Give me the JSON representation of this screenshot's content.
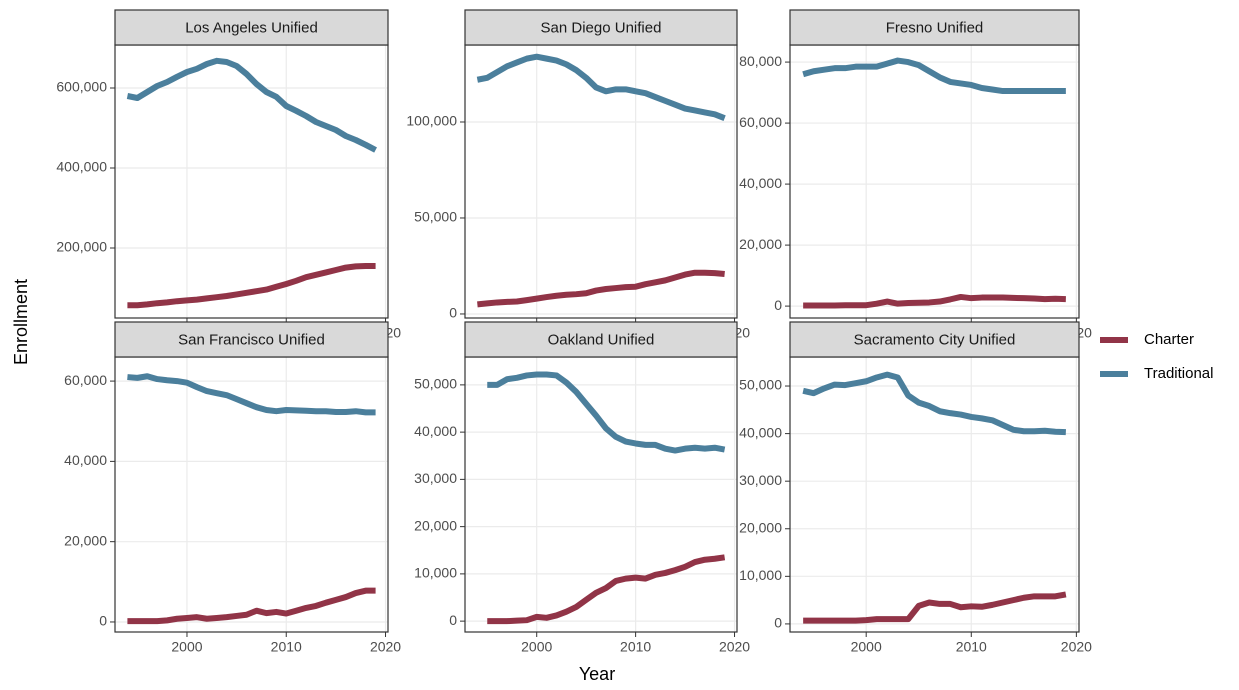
{
  "xlabel": "Year",
  "ylabel": "Enrollment",
  "chart_data": [
    {
      "type": "line",
      "title": "Los Angeles Unified",
      "grid": true,
      "x": [
        1994,
        1995,
        1996,
        1997,
        1998,
        1999,
        2000,
        2001,
        2002,
        2003,
        2004,
        2005,
        2006,
        2007,
        2008,
        2009,
        2010,
        2011,
        2012,
        2013,
        2014,
        2015,
        2016,
        2017,
        2018,
        2019
      ],
      "xlim": [
        1992.75,
        2020.25
      ],
      "xticks": [
        2000,
        2010,
        2020
      ],
      "ylim": [
        25000,
        707500
      ],
      "yticks": [
        {
          "value": 200000,
          "label": "200,000"
        },
        {
          "value": 400000,
          "label": "400,000"
        },
        {
          "value": 600000,
          "label": "600,000"
        }
      ],
      "series": [
        {
          "name": "Charter",
          "color": "#913447",
          "values": [
            57000,
            57000,
            59000,
            62000,
            64000,
            67000,
            69000,
            71000,
            74000,
            77000,
            80000,
            84000,
            88000,
            92000,
            96000,
            103000,
            110000,
            118000,
            127000,
            133000,
            139000,
            145000,
            151000,
            154000,
            155000,
            155000
          ]
        },
        {
          "name": "Traditional",
          "color": "#4b7f9c",
          "values": [
            580000,
            575000,
            590000,
            605000,
            615000,
            628000,
            640000,
            648000,
            660000,
            668000,
            665000,
            655000,
            635000,
            610000,
            590000,
            578000,
            555000,
            543000,
            530000,
            515000,
            505000,
            495000,
            480000,
            470000,
            458000,
            445000
          ]
        }
      ]
    },
    {
      "type": "line",
      "title": "San Diego Unified",
      "grid": true,
      "x": [
        1994,
        1995,
        1996,
        1997,
        1998,
        1999,
        2000,
        2001,
        2002,
        2003,
        2004,
        2005,
        2006,
        2007,
        2008,
        2009,
        2010,
        2011,
        2012,
        2013,
        2014,
        2015,
        2016,
        2017,
        2018,
        2019
      ],
      "xlim": [
        1992.75,
        2020.25
      ],
      "xticks": [
        2000,
        2010,
        2020
      ],
      "ylim": [
        -2100,
        140100
      ],
      "yticks": [
        0,
        {
          "value": 50000,
          "label": "50,000"
        },
        {
          "value": 100000,
          "label": "100,000"
        }
      ],
      "series": [
        {
          "name": "Charter",
          "color": "#913447",
          "values": [
            5000,
            5500,
            6000,
            6300,
            6500,
            7200,
            8000,
            8800,
            9500,
            10000,
            10300,
            10800,
            12200,
            13000,
            13500,
            14000,
            14200,
            15500,
            16500,
            17500,
            19000,
            20500,
            21500,
            21500,
            21300,
            20800
          ]
        },
        {
          "name": "Traditional",
          "color": "#4b7f9c",
          "values": [
            122000,
            123000,
            126000,
            129000,
            131000,
            133000,
            134000,
            133000,
            132000,
            130000,
            127000,
            123000,
            118000,
            116000,
            117000,
            117000,
            116000,
            115000,
            113000,
            111000,
            109000,
            107000,
            106000,
            105000,
            104000,
            102000
          ]
        }
      ]
    },
    {
      "type": "line",
      "title": "Fresno Unified",
      "grid": true,
      "x": [
        1994,
        1995,
        1996,
        1997,
        1998,
        1999,
        2000,
        2001,
        2002,
        2003,
        2004,
        2005,
        2006,
        2007,
        2008,
        2009,
        2010,
        2011,
        2012,
        2013,
        2014,
        2015,
        2016,
        2017,
        2018,
        2019
      ],
      "xlim": [
        1992.75,
        2020.25
      ],
      "xticks": [
        2000,
        2010,
        2020
      ],
      "ylim": [
        -3900,
        85600
      ],
      "yticks": [
        0,
        {
          "value": 20000,
          "label": "20,000"
        },
        {
          "value": 40000,
          "label": "40,000"
        },
        {
          "value": 60000,
          "label": "60,000"
        },
        {
          "value": 80000,
          "label": "80,000"
        }
      ],
      "series": [
        {
          "name": "Charter",
          "color": "#913447",
          "values": [
            200,
            200,
            200,
            200,
            300,
            300,
            300,
            800,
            1500,
            800,
            1000,
            1100,
            1200,
            1500,
            2200,
            3000,
            2600,
            2800,
            2800,
            2800,
            2700,
            2600,
            2500,
            2300,
            2400,
            2300
          ]
        },
        {
          "name": "Traditional",
          "color": "#4b7f9c",
          "values": [
            76000,
            77000,
            77500,
            78000,
            78000,
            78500,
            78500,
            78500,
            79500,
            80500,
            80000,
            79000,
            77000,
            75000,
            73500,
            73000,
            72500,
            71500,
            71000,
            70500,
            70500,
            70500,
            70500,
            70500,
            70500,
            70500
          ]
        }
      ]
    },
    {
      "type": "line",
      "title": "San Francisco Unified",
      "grid": true,
      "x": [
        1994,
        1995,
        1996,
        1997,
        1998,
        1999,
        2000,
        2001,
        2002,
        2003,
        2004,
        2005,
        2006,
        2007,
        2008,
        2009,
        2010,
        2011,
        2012,
        2013,
        2014,
        2015,
        2016,
        2017,
        2018,
        2019
      ],
      "xlim": [
        1992.75,
        2020.25
      ],
      "xticks": [
        2000,
        2010,
        2020
      ],
      "ylim": [
        -2500,
        66000
      ],
      "yticks": [
        0,
        {
          "value": 20000,
          "label": "20,000"
        },
        {
          "value": 40000,
          "label": "40,000"
        },
        {
          "value": 60000,
          "label": "60,000"
        }
      ],
      "series": [
        {
          "name": "Charter",
          "color": "#913447",
          "values": [
            200,
            200,
            200,
            200,
            400,
            800,
            1000,
            1200,
            800,
            1000,
            1200,
            1500,
            1800,
            2800,
            2200,
            2500,
            2100,
            2800,
            3500,
            4000,
            4800,
            5500,
            6200,
            7200,
            7800,
            7800
          ]
        },
        {
          "name": "Traditional",
          "color": "#4b7f9c",
          "values": [
            61000,
            60800,
            61200,
            60500,
            60200,
            60000,
            59600,
            58500,
            57500,
            57000,
            56500,
            55500,
            54500,
            53500,
            52800,
            52500,
            52800,
            52700,
            52600,
            52500,
            52500,
            52300,
            52300,
            52500,
            52200,
            52200
          ]
        }
      ]
    },
    {
      "type": "line",
      "title": "Oakland Unified",
      "grid": true,
      "x": [
        1994,
        1995,
        1996,
        1997,
        1998,
        1999,
        2000,
        2001,
        2002,
        2003,
        2004,
        2005,
        2006,
        2007,
        2008,
        2009,
        2010,
        2011,
        2012,
        2013,
        2014,
        2015,
        2016,
        2017,
        2018,
        2019
      ],
      "xlim": [
        1992.75,
        2020.25
      ],
      "xticks": [
        2000,
        2010,
        2020
      ],
      "ylim": [
        -2300,
        55900
      ],
      "yticks": [
        0,
        {
          "value": 10000,
          "label": "10,000"
        },
        {
          "value": 20000,
          "label": "20,000"
        },
        {
          "value": 30000,
          "label": "30,000"
        },
        {
          "value": 40000,
          "label": "40,000"
        },
        {
          "value": 50000,
          "label": "50,000"
        }
      ],
      "series": [
        {
          "name": "Charter",
          "color": "#913447",
          "values": [
            null,
            0,
            0,
            0,
            100,
            200,
            900,
            700,
            1200,
            2000,
            3000,
            4500,
            6000,
            7000,
            8500,
            9000,
            9200,
            9000,
            9800,
            10200,
            10800,
            11500,
            12500,
            13000,
            13200,
            13500
          ]
        },
        {
          "name": "Traditional",
          "color": "#4b7f9c",
          "values": [
            null,
            50000,
            50000,
            51200,
            51500,
            52000,
            52200,
            52200,
            52000,
            50500,
            48500,
            46000,
            43500,
            40800,
            39000,
            38000,
            37600,
            37300,
            37300,
            36500,
            36100,
            36500,
            36700,
            36500,
            36700,
            36300
          ]
        }
      ]
    },
    {
      "type": "line",
      "title": "Sacramento City Unified",
      "grid": true,
      "x": [
        1994,
        1995,
        1996,
        1997,
        1998,
        1999,
        2000,
        2001,
        2002,
        2003,
        2004,
        2005,
        2006,
        2007,
        2008,
        2009,
        2010,
        2011,
        2012,
        2013,
        2014,
        2015,
        2016,
        2017,
        2018,
        2019
      ],
      "xlim": [
        1992.75,
        2020.25
      ],
      "xticks": [
        2000,
        2010,
        2020
      ],
      "ylim": [
        -1700,
        56100
      ],
      "yticks": [
        0,
        {
          "value": 10000,
          "label": "10,000"
        },
        {
          "value": 20000,
          "label": "20,000"
        },
        {
          "value": 30000,
          "label": "30,000"
        },
        {
          "value": 40000,
          "label": "40,000"
        },
        {
          "value": 50000,
          "label": "50,000"
        }
      ],
      "series": [
        {
          "name": "Charter",
          "color": "#913447",
          "values": [
            700,
            700,
            700,
            700,
            700,
            700,
            800,
            1000,
            1000,
            1000,
            1000,
            3800,
            4500,
            4200,
            4200,
            3500,
            3700,
            3600,
            4000,
            4500,
            5000,
            5500,
            5800,
            5800,
            5800,
            6200
          ]
        },
        {
          "name": "Traditional",
          "color": "#4b7f9c",
          "values": [
            49000,
            48500,
            49500,
            50300,
            50200,
            50600,
            51000,
            51800,
            52400,
            51800,
            48000,
            46500,
            45800,
            44700,
            44300,
            44000,
            43500,
            43200,
            42800,
            41800,
            40800,
            40500,
            40500,
            40600,
            40400,
            40300
          ]
        }
      ]
    }
  ]
}
